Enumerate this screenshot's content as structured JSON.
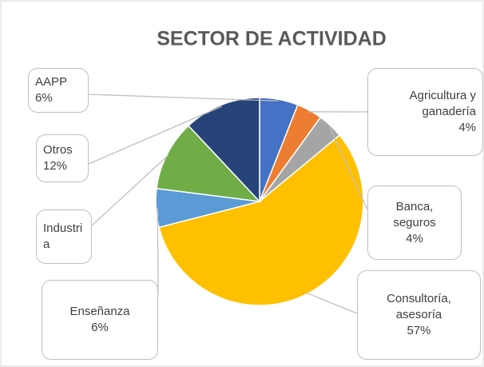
{
  "chart_data": {
    "type": "pie",
    "title": "SECTOR DE ACTIVIDAD",
    "categories": [
      "AAPP",
      "Agricultura y ganadería",
      "Banca, seguros",
      "Consultoría, asesoría",
      "Enseñanza",
      "Industria",
      "Otros"
    ],
    "values": [
      6,
      4,
      4,
      57,
      6,
      11,
      12
    ],
    "value_labels": [
      "6%",
      "4%",
      "4%",
      "57%",
      "6%",
      null,
      "12%"
    ],
    "colors": [
      "#4472c4",
      "#ed7d31",
      "#a5a5a5",
      "#ffc000",
      "#5b9bd5",
      "#70ad47",
      "#264478"
    ]
  }
}
